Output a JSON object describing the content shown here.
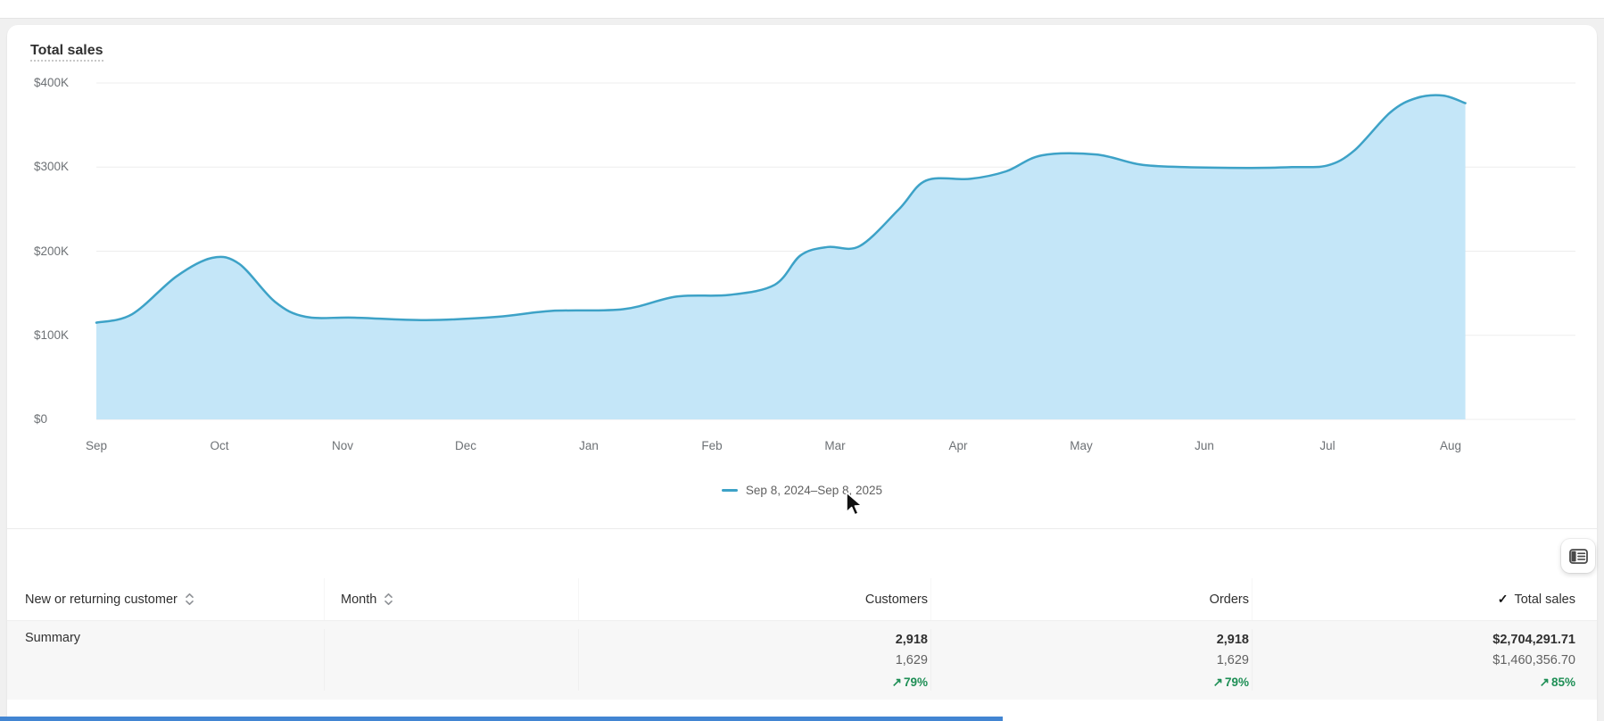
{
  "header": {
    "title": "Total sales"
  },
  "chart_data": {
    "type": "area",
    "title": "Total sales",
    "x_tick_labels": [
      "Sep",
      "Oct",
      "Nov",
      "Dec",
      "Jan",
      "Feb",
      "Mar",
      "Apr",
      "May",
      "Jun",
      "Jul",
      "Aug"
    ],
    "y_tick_labels": [
      "$400K",
      "$300K",
      "$200K",
      "$100K",
      "$0"
    ],
    "y_tick_values": [
      400000,
      300000,
      200000,
      100000,
      0
    ],
    "ylim": [
      0,
      400000
    ],
    "grid": "horizontal",
    "legend_position": "bottom-center",
    "legend_label": "Sep 8, 2024–Sep 8, 2025",
    "x_unit": "month index, 0 = Sep 2024 .. 11 = Aug 2025 (fractional = within month)",
    "series": [
      {
        "name": "Sep 8, 2024–Sep 8, 2025",
        "color": "#3da2c7",
        "fill": "#c4e6f8",
        "points": [
          [
            0,
            115000
          ],
          [
            0.29,
            125000
          ],
          [
            0.65,
            170000
          ],
          [
            0.94,
            192000
          ],
          [
            1.16,
            185000
          ],
          [
            1.45,
            140000
          ],
          [
            1.7,
            122000
          ],
          [
            2.1,
            121000
          ],
          [
            2.68,
            118000
          ],
          [
            3.26,
            122000
          ],
          [
            3.7,
            129000
          ],
          [
            4.28,
            131000
          ],
          [
            4.71,
            146000
          ],
          [
            5.14,
            148000
          ],
          [
            5.51,
            160000
          ],
          [
            5.72,
            195000
          ],
          [
            5.94,
            205000
          ],
          [
            6.2,
            206000
          ],
          [
            6.52,
            250000
          ],
          [
            6.74,
            284000
          ],
          [
            7.1,
            286000
          ],
          [
            7.39,
            295000
          ],
          [
            7.68,
            314000
          ],
          [
            8.12,
            315000
          ],
          [
            8.48,
            303000
          ],
          [
            8.84,
            300000
          ],
          [
            9.35,
            299000
          ],
          [
            9.71,
            300000
          ],
          [
            10.0,
            302000
          ],
          [
            10.22,
            320000
          ],
          [
            10.51,
            365000
          ],
          [
            10.72,
            382000
          ],
          [
            10.94,
            385000
          ],
          [
            11.12,
            376000
          ]
        ]
      }
    ]
  },
  "icons": {
    "check": "✓",
    "trend_up": "↗"
  },
  "colors": {
    "line": "#3da2c7",
    "fill": "#c4e6f8",
    "success": "#1f8f56",
    "grid": "#ededed",
    "progress_bar": "#4285d2"
  },
  "table": {
    "columns": [
      {
        "id": "customer_type",
        "label": "New or returning customer",
        "sortable": true,
        "align": "left"
      },
      {
        "id": "month",
        "label": "Month",
        "sortable": true,
        "align": "left"
      },
      {
        "id": "customers",
        "label": "Customers",
        "align": "right"
      },
      {
        "id": "orders",
        "label": "Orders",
        "align": "right"
      },
      {
        "id": "total_sales",
        "label": "Total sales",
        "align": "right",
        "selected": true
      }
    ],
    "rows": [
      {
        "label": "Summary",
        "month": "",
        "customers": {
          "current": "2,918",
          "previous": "1,629",
          "change": "79%",
          "direction": "up"
        },
        "orders": {
          "current": "2,918",
          "previous": "1,629",
          "change": "79%",
          "direction": "up"
        },
        "total_sales": {
          "current": "$2,704,291.71",
          "previous": "$1,460,356.70",
          "change": "85%",
          "direction": "up"
        }
      }
    ]
  }
}
